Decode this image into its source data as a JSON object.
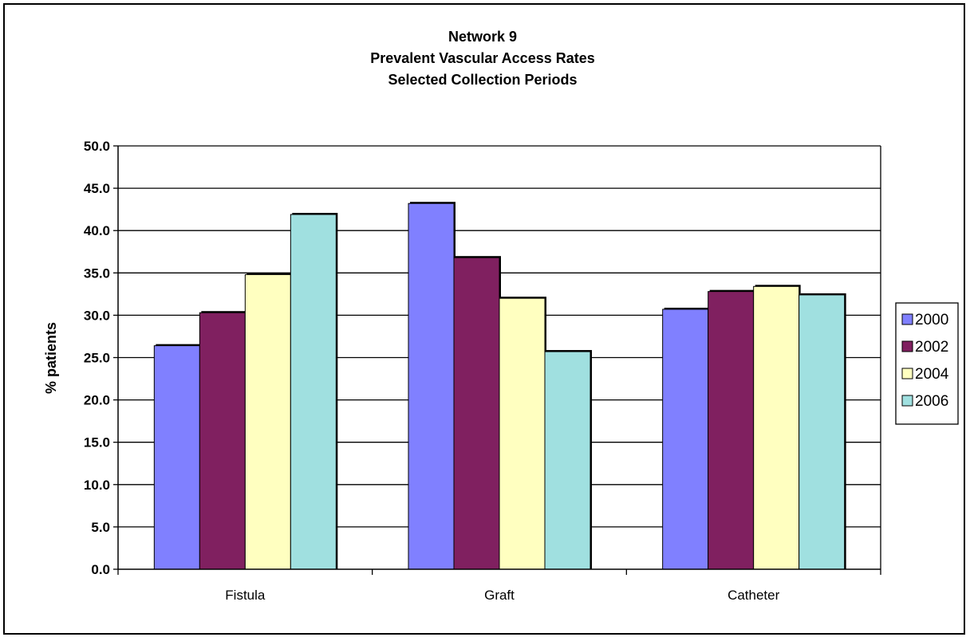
{
  "chart_data": {
    "type": "bar",
    "title_lines": [
      "Network 9",
      "Prevalent Vascular Access Rates",
      "Selected Collection Periods"
    ],
    "ylabel": "% patients",
    "xlabel": "",
    "categories": [
      "Fistula",
      "Graft",
      "Catheter"
    ],
    "y_ticks": [
      "0.0",
      "5.0",
      "10.0",
      "15.0",
      "20.0",
      "25.0",
      "30.0",
      "35.0",
      "40.0",
      "45.0",
      "50.0"
    ],
    "ylim": [
      0,
      50
    ],
    "grid": true,
    "legend_position": "right",
    "series": [
      {
        "name": "2000",
        "color": "#8080ff",
        "values": [
          26.4,
          43.2,
          30.7
        ]
      },
      {
        "name": "2002",
        "color": "#802060",
        "values": [
          30.3,
          36.8,
          32.8
        ]
      },
      {
        "name": "2004",
        "color": "#ffffc0",
        "values": [
          34.8,
          32.0,
          33.4
        ]
      },
      {
        "name": "2006",
        "color": "#a0e0e0",
        "values": [
          41.9,
          25.7,
          32.4
        ]
      }
    ]
  }
}
